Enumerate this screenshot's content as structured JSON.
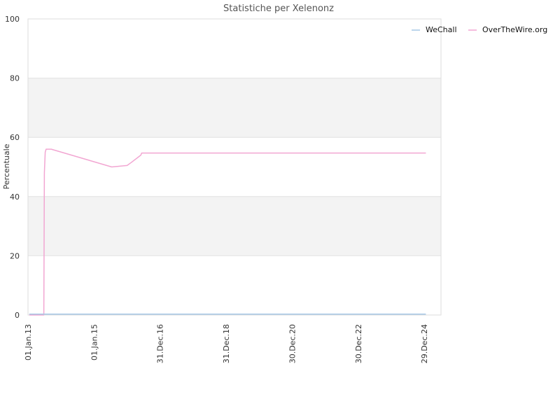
{
  "chart_data": {
    "type": "line",
    "title": "Statistiche per Xelenonz",
    "xlabel": "",
    "ylabel": "Percentuale",
    "ylim": [
      0,
      100
    ],
    "yticks": [
      0,
      20,
      40,
      60,
      80,
      100
    ],
    "xlim": [
      "2013-01-01",
      "2025-07-01"
    ],
    "xticks": [
      {
        "date": "2013-01-01",
        "label": "01.Jan.13"
      },
      {
        "date": "2015-01-01",
        "label": "01.Jan.15"
      },
      {
        "date": "2016-12-31",
        "label": "31.Dec.16"
      },
      {
        "date": "2018-12-31",
        "label": "31.Dec.18"
      },
      {
        "date": "2020-12-30",
        "label": "30.Dec.20"
      },
      {
        "date": "2022-12-30",
        "label": "30.Dec.22"
      },
      {
        "date": "2024-12-29",
        "label": "29.Dec.24"
      }
    ],
    "grid": true,
    "legend": "top-right",
    "series": [
      {
        "name": "WeChall",
        "color": "#a6c8e6",
        "points": [
          {
            "x": "2013-01-15",
            "y": 0.3
          },
          {
            "x": "2025-01-15",
            "y": 0.3
          }
        ]
      },
      {
        "name": "OverTheWire.org",
        "color": "#f2a6d2",
        "points": [
          {
            "x": "2013-01-15",
            "y": 0
          },
          {
            "x": "2013-06-25",
            "y": 0
          },
          {
            "x": "2013-07-01",
            "y": 48
          },
          {
            "x": "2013-07-10",
            "y": 55
          },
          {
            "x": "2013-07-20",
            "y": 56
          },
          {
            "x": "2013-09-15",
            "y": 56
          },
          {
            "x": "2015-07-15",
            "y": 50
          },
          {
            "x": "2016-01-01",
            "y": 50.5
          },
          {
            "x": "2016-02-15",
            "y": 51.5
          },
          {
            "x": "2016-06-01",
            "y": 54
          },
          {
            "x": "2016-06-10",
            "y": 54.7
          },
          {
            "x": "2025-01-15",
            "y": 54.7
          }
        ]
      }
    ]
  }
}
